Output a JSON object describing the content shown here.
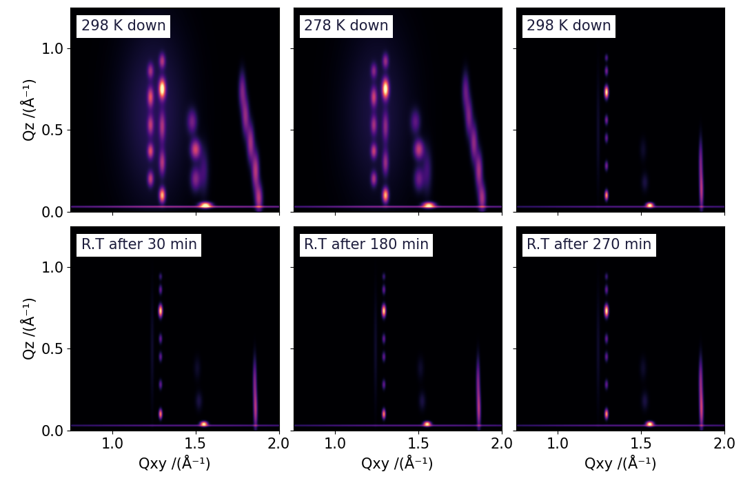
{
  "chart_data": [
    {
      "type": "heatmap",
      "title": "298 K down",
      "ylabel": "Qz /(Å⁻¹)",
      "xlim": [
        0.75,
        2.0
      ],
      "ylim": [
        0.0,
        1.25
      ],
      "xticks": [
        {
          "value": 1.0,
          "label": "1.0"
        },
        {
          "value": 1.5,
          "label": "1.5"
        },
        {
          "value": 2.0,
          "label": "2.0"
        }
      ],
      "yticks": [
        {
          "value": 0.0,
          "label": "0.0"
        },
        {
          "value": 0.5,
          "label": "0.5"
        },
        {
          "value": 1.0,
          "label": "1.0"
        }
      ],
      "tick_labels": "y",
      "color": "magma",
      "intensity_range": [
        0,
        1
      ],
      "spots": {
        "qxy": [
          1.23,
          1.23,
          1.23,
          1.23,
          1.23,
          1.3,
          1.3,
          1.3,
          1.3,
          1.3,
          1.5,
          1.5,
          1.48,
          1.56,
          1.55,
          1.88,
          1.86,
          1.83,
          1.8,
          1.78,
          1.25,
          1.5
        ],
        "qz": [
          0.2,
          0.37,
          0.53,
          0.7,
          0.86,
          0.1,
          0.3,
          0.52,
          0.75,
          0.92,
          0.2,
          0.38,
          0.55,
          0.04,
          0.25,
          0.08,
          0.25,
          0.42,
          0.58,
          0.74,
          0.6,
          0.03
        ],
        "intensity": [
          0.45,
          0.5,
          0.4,
          0.5,
          0.35,
          0.8,
          0.4,
          0.35,
          1.0,
          0.4,
          0.35,
          0.55,
          0.3,
          1.0,
          0.2,
          0.5,
          0.5,
          0.45,
          0.4,
          0.35,
          0.15,
          0.45
        ],
        "width_xy": [
          0.012,
          0.012,
          0.012,
          0.012,
          0.012,
          0.012,
          0.012,
          0.012,
          0.013,
          0.012,
          0.02,
          0.02,
          0.02,
          0.025,
          0.02,
          0.015,
          0.015,
          0.015,
          0.015,
          0.015,
          0.15,
          0.8
        ],
        "width_z": [
          0.03,
          0.03,
          0.04,
          0.04,
          0.03,
          0.03,
          0.05,
          0.06,
          0.04,
          0.03,
          0.05,
          0.04,
          0.05,
          0.012,
          0.1,
          0.06,
          0.08,
          0.08,
          0.08,
          0.08,
          0.4,
          0.004
        ]
      }
    },
    {
      "type": "heatmap",
      "title": "278 K down",
      "xlim": [
        0.75,
        2.0
      ],
      "ylim": [
        0.0,
        1.25
      ],
      "xticks": [
        {
          "value": 1.0,
          "label": "1.0"
        },
        {
          "value": 1.5,
          "label": "1.5"
        },
        {
          "value": 2.0,
          "label": "2.0"
        }
      ],
      "yticks": [
        {
          "value": 0.0,
          "label": "0.0"
        },
        {
          "value": 0.5,
          "label": "0.5"
        },
        {
          "value": 1.0,
          "label": "1.0"
        }
      ],
      "tick_labels": false,
      "color": "magma",
      "intensity_range": [
        0,
        1
      ],
      "spots": {
        "qxy": [
          1.23,
          1.23,
          1.23,
          1.23,
          1.23,
          1.3,
          1.3,
          1.3,
          1.3,
          1.3,
          1.5,
          1.5,
          1.48,
          1.56,
          1.55,
          1.88,
          1.86,
          1.83,
          1.8,
          1.78,
          1.25,
          1.5
        ],
        "qz": [
          0.2,
          0.37,
          0.53,
          0.7,
          0.86,
          0.1,
          0.3,
          0.52,
          0.75,
          0.92,
          0.2,
          0.38,
          0.55,
          0.04,
          0.25,
          0.08,
          0.25,
          0.42,
          0.58,
          0.74,
          0.6,
          0.03
        ],
        "intensity": [
          0.4,
          0.45,
          0.35,
          0.45,
          0.3,
          0.8,
          0.35,
          0.3,
          1.0,
          0.35,
          0.3,
          0.5,
          0.25,
          0.9,
          0.2,
          0.45,
          0.45,
          0.4,
          0.35,
          0.3,
          0.12,
          0.4
        ],
        "width_xy": [
          0.012,
          0.012,
          0.012,
          0.012,
          0.012,
          0.012,
          0.012,
          0.012,
          0.013,
          0.012,
          0.02,
          0.02,
          0.02,
          0.025,
          0.02,
          0.015,
          0.015,
          0.015,
          0.015,
          0.015,
          0.15,
          0.8
        ],
        "width_z": [
          0.03,
          0.03,
          0.04,
          0.04,
          0.03,
          0.03,
          0.05,
          0.06,
          0.04,
          0.03,
          0.05,
          0.04,
          0.05,
          0.012,
          0.1,
          0.06,
          0.08,
          0.08,
          0.08,
          0.08,
          0.4,
          0.004
        ]
      }
    },
    {
      "type": "heatmap",
      "title": "298 K down",
      "xlim": [
        0.75,
        2.0
      ],
      "ylim": [
        0.0,
        1.25
      ],
      "xticks": [
        {
          "value": 1.0,
          "label": "1.0"
        },
        {
          "value": 1.5,
          "label": "1.5"
        },
        {
          "value": 2.0,
          "label": "2.0"
        }
      ],
      "yticks": [
        {
          "value": 0.0,
          "label": "0.0"
        },
        {
          "value": 0.5,
          "label": "0.5"
        },
        {
          "value": 1.0,
          "label": "1.0"
        }
      ],
      "tick_labels": false,
      "color": "magma",
      "intensity_range": [
        0,
        1
      ],
      "spots": {
        "qxy": [
          1.29,
          1.29,
          1.29,
          1.29,
          1.29,
          1.29,
          1.29,
          1.24,
          1.55,
          1.52,
          1.51,
          1.86,
          1.855,
          1.5
        ],
        "qz": [
          0.1,
          0.28,
          0.45,
          0.56,
          0.73,
          0.86,
          0.94,
          0.5,
          0.04,
          0.18,
          0.38,
          0.12,
          0.3,
          0.03
        ],
        "intensity": [
          0.8,
          0.35,
          0.3,
          0.35,
          1.0,
          0.35,
          0.25,
          0.08,
          1.0,
          0.12,
          0.08,
          0.45,
          0.35,
          0.3
        ],
        "width_xy": [
          0.007,
          0.007,
          0.007,
          0.007,
          0.008,
          0.007,
          0.007,
          0.008,
          0.015,
          0.015,
          0.015,
          0.008,
          0.008,
          0.8
        ],
        "width_z": [
          0.02,
          0.02,
          0.02,
          0.02,
          0.025,
          0.02,
          0.015,
          0.25,
          0.01,
          0.04,
          0.05,
          0.08,
          0.1,
          0.004
        ]
      }
    },
    {
      "type": "heatmap",
      "title": "R.T after 30 min",
      "xlabel": "Qxy /(Å⁻¹)",
      "ylabel": "Qz /(Å⁻¹)",
      "xlim": [
        0.75,
        2.0
      ],
      "ylim": [
        0.0,
        1.25
      ],
      "xticks": [
        {
          "value": 1.0,
          "label": "1.0"
        },
        {
          "value": 1.5,
          "label": "1.5"
        },
        {
          "value": 2.0,
          "label": "2.0"
        }
      ],
      "yticks": [
        {
          "value": 0.0,
          "label": "0.0"
        },
        {
          "value": 0.5,
          "label": "0.5"
        },
        {
          "value": 1.0,
          "label": "1.0"
        }
      ],
      "tick_labels": true,
      "color": "magma",
      "intensity_range": [
        0,
        1
      ],
      "spots": {
        "qxy": [
          1.29,
          1.29,
          1.29,
          1.29,
          1.29,
          1.29,
          1.29,
          1.24,
          1.55,
          1.52,
          1.51,
          1.86,
          1.855,
          1.5
        ],
        "qz": [
          0.1,
          0.28,
          0.45,
          0.56,
          0.73,
          0.86,
          0.94,
          0.5,
          0.04,
          0.18,
          0.38,
          0.12,
          0.3,
          0.03
        ],
        "intensity": [
          0.75,
          0.3,
          0.3,
          0.3,
          0.95,
          0.3,
          0.2,
          0.08,
          0.95,
          0.12,
          0.08,
          0.45,
          0.35,
          0.3
        ],
        "width_xy": [
          0.007,
          0.007,
          0.007,
          0.007,
          0.008,
          0.007,
          0.007,
          0.008,
          0.015,
          0.015,
          0.015,
          0.008,
          0.008,
          0.8
        ],
        "width_z": [
          0.02,
          0.02,
          0.02,
          0.02,
          0.025,
          0.02,
          0.015,
          0.25,
          0.01,
          0.04,
          0.05,
          0.08,
          0.1,
          0.004
        ]
      }
    },
    {
      "type": "heatmap",
      "title": "R.T after 180 min",
      "xlabel": "Qxy /(Å⁻¹)",
      "xlim": [
        0.75,
        2.0
      ],
      "ylim": [
        0.0,
        1.25
      ],
      "xticks": [
        {
          "value": 1.0,
          "label": "1.0"
        },
        {
          "value": 1.5,
          "label": "1.5"
        },
        {
          "value": 2.0,
          "label": "2.0"
        }
      ],
      "yticks": [
        {
          "value": 0.0,
          "label": "0.0"
        },
        {
          "value": 0.5,
          "label": "0.5"
        },
        {
          "value": 1.0,
          "label": "1.0"
        }
      ],
      "tick_labels": "x",
      "color": "magma",
      "intensity_range": [
        0,
        1
      ],
      "spots": {
        "qxy": [
          1.29,
          1.29,
          1.29,
          1.29,
          1.29,
          1.29,
          1.29,
          1.24,
          1.55,
          1.52,
          1.51,
          1.86,
          1.855,
          1.5
        ],
        "qz": [
          0.1,
          0.28,
          0.45,
          0.56,
          0.73,
          0.86,
          0.94,
          0.5,
          0.04,
          0.18,
          0.38,
          0.12,
          0.3,
          0.03
        ],
        "intensity": [
          0.75,
          0.3,
          0.3,
          0.3,
          0.95,
          0.3,
          0.2,
          0.08,
          0.95,
          0.12,
          0.08,
          0.45,
          0.35,
          0.3
        ],
        "width_xy": [
          0.007,
          0.007,
          0.007,
          0.007,
          0.008,
          0.007,
          0.007,
          0.008,
          0.015,
          0.015,
          0.015,
          0.008,
          0.008,
          0.8
        ],
        "width_z": [
          0.02,
          0.02,
          0.02,
          0.02,
          0.025,
          0.02,
          0.015,
          0.25,
          0.01,
          0.04,
          0.05,
          0.08,
          0.1,
          0.004
        ]
      }
    },
    {
      "type": "heatmap",
      "title": "R.T after 270 min",
      "xlabel": "Qxy /(Å⁻¹)",
      "xlim": [
        0.75,
        2.0
      ],
      "ylim": [
        0.0,
        1.25
      ],
      "xticks": [
        {
          "value": 1.0,
          "label": "1.0"
        },
        {
          "value": 1.5,
          "label": "1.5"
        },
        {
          "value": 2.0,
          "label": "2.0"
        }
      ],
      "yticks": [
        {
          "value": 0.0,
          "label": "0.0"
        },
        {
          "value": 0.5,
          "label": "0.5"
        },
        {
          "value": 1.0,
          "label": "1.0"
        }
      ],
      "tick_labels": "x",
      "color": "magma",
      "intensity_range": [
        0,
        1
      ],
      "spots": {
        "qxy": [
          1.29,
          1.29,
          1.29,
          1.29,
          1.29,
          1.29,
          1.29,
          1.24,
          1.55,
          1.52,
          1.51,
          1.86,
          1.855,
          1.5
        ],
        "qz": [
          0.1,
          0.28,
          0.45,
          0.56,
          0.73,
          0.86,
          0.94,
          0.5,
          0.04,
          0.18,
          0.38,
          0.12,
          0.3,
          0.03
        ],
        "intensity": [
          0.8,
          0.3,
          0.3,
          0.3,
          1.0,
          0.3,
          0.2,
          0.08,
          1.0,
          0.12,
          0.08,
          0.5,
          0.4,
          0.3
        ],
        "width_xy": [
          0.007,
          0.007,
          0.007,
          0.007,
          0.008,
          0.007,
          0.007,
          0.008,
          0.015,
          0.015,
          0.015,
          0.008,
          0.008,
          0.8
        ],
        "width_z": [
          0.02,
          0.02,
          0.02,
          0.02,
          0.025,
          0.02,
          0.015,
          0.25,
          0.01,
          0.04,
          0.05,
          0.08,
          0.1,
          0.004
        ]
      }
    }
  ]
}
